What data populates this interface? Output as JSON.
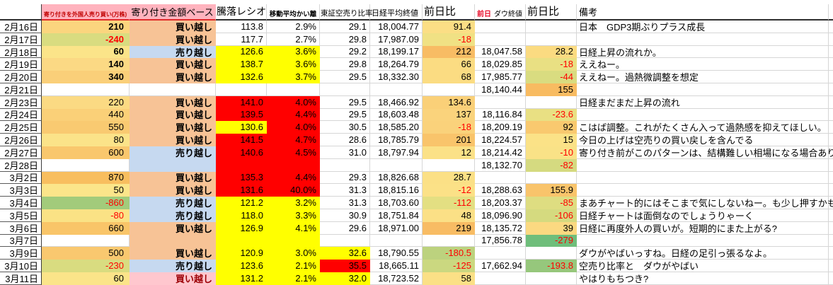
{
  "table": {
    "headers": {
      "date": "",
      "foreign": "寄り付きを外国人売り買い(万株)",
      "base": "寄り付き金額ベース",
      "ratio": "騰落レシオ",
      "dev": "移動平均かい離",
      "short": "東証空売り比率",
      "nikkei": "日経平均終値",
      "chg": "前日比",
      "dow_prev": "前日",
      "dow": "ダウ終値",
      "dowchg": "前日比",
      "note": "備考"
    },
    "palette": {
      "header_pink": "#FFB3BE",
      "header_red_text": "#C00000",
      "buy_bg": "#F7C396",
      "sell_bg": "#C6D9F0",
      "alert_buy_bg": "#FFC7CE",
      "alert_buy_text": "#9C0006",
      "ratio_red": "#FF0000",
      "ratio_yellow": "#FFFF00",
      "negative_text": "#FF0000"
    },
    "rows": [
      {
        "date": "2月16日",
        "foreign": {
          "t": "210",
          "bg": "#FBD57E",
          "b": 1
        },
        "base": {
          "t": "買い越し",
          "bg": "#F7C396"
        },
        "ratio": {
          "t": "113.8"
        },
        "dev": {
          "t": "2.9%"
        },
        "short": {
          "t": "29.1"
        },
        "nikkei": {
          "t": "18,004.77"
        },
        "chg": {
          "t": "91.4",
          "bg": "#FBDE85"
        },
        "note": {
          "t": "日本　GDP3期ぶりプラス成長"
        }
      },
      {
        "date": "2月17日",
        "foreign": {
          "t": "-240",
          "bg": "#D9DC80",
          "fg": "#FF0000",
          "b": 1
        },
        "base": {
          "t": "買い越し",
          "bg": "#F7C396"
        },
        "ratio": {
          "t": "117.7"
        },
        "dev": {
          "t": "2.7%"
        },
        "short": {
          "t": "29.8"
        },
        "nikkei": {
          "t": "17,987.09"
        },
        "chg": {
          "t": "-18",
          "bg": "#F0E184",
          "fg": "#FF0000"
        }
      },
      {
        "date": "2月18日",
        "foreign": {
          "t": "60",
          "bg": "#FBE489",
          "b": 1
        },
        "base": {
          "t": "売り越し",
          "bg": "#C6D9F0"
        },
        "ratio": {
          "t": "126.6",
          "bg": "#FFFF00"
        },
        "dev": {
          "t": "3.6%",
          "bg": "#FFFF00"
        },
        "short": {
          "t": "29.2"
        },
        "nikkei": {
          "t": "18,199.17"
        },
        "chg": {
          "t": "212",
          "bg": "#F8BC64"
        },
        "dow": {
          "t": "18,047.58"
        },
        "dowchg": {
          "t": "28.2",
          "bg": "#FBDB81"
        },
        "note": {
          "t": "日経上昇の流れか。"
        }
      },
      {
        "date": "2月19日",
        "foreign": {
          "t": "140",
          "bg": "#FBD984",
          "b": 1
        },
        "base": {
          "t": "買い越し",
          "bg": "#F7C396"
        },
        "ratio": {
          "t": "138.7",
          "bg": "#FFFF00"
        },
        "dev": {
          "t": "3.6%",
          "bg": "#FFFF00"
        },
        "short": {
          "t": "29.8"
        },
        "nikkei": {
          "t": "18,264.79"
        },
        "chg": {
          "t": "66",
          "bg": "#FBDC82"
        },
        "dow": {
          "t": "18,029.85"
        },
        "dowchg": {
          "t": "-18",
          "bg": "#E9E083",
          "fg": "#FF0000"
        },
        "note": {
          "t": "ええねー。"
        }
      },
      {
        "date": "2月20日",
        "foreign": {
          "t": "340",
          "bg": "#FACF79",
          "b": 1
        },
        "base": {
          "t": "買い越し",
          "bg": "#F7C396"
        },
        "ratio": {
          "t": "132.6",
          "bg": "#FFFF00"
        },
        "dev": {
          "t": "3.7%",
          "bg": "#FFFF00"
        },
        "short": {
          "t": "29.5"
        },
        "nikkei": {
          "t": "18,332.30"
        },
        "chg": {
          "t": "68",
          "bg": "#FBDC82"
        },
        "dow": {
          "t": "17,985.77"
        },
        "dowchg": {
          "t": "-44",
          "bg": "#D9DC80",
          "fg": "#FF0000"
        },
        "note": {
          "t": "ええねー。過熱微調整を想定"
        }
      },
      {
        "date": "2月21日",
        "dow": {
          "t": "18,140.44"
        },
        "dowchg": {
          "t": "155",
          "bg": "#F8BB61"
        }
      },
      {
        "date": "2月23日",
        "foreign": {
          "t": "220",
          "bg": "#FBDA83"
        },
        "base": {
          "t": "買い越し",
          "bg": "#F7C396"
        },
        "ratio": {
          "t": "141.0",
          "bg": "#FF0000"
        },
        "dev": {
          "t": "4.0%",
          "bg": "#FF0000"
        },
        "short": {
          "t": "29.5"
        },
        "nikkei": {
          "t": "18,466.92"
        },
        "chg": {
          "t": "134.6",
          "bg": "#FAD078"
        },
        "note": {
          "t": "日経まだまだ上昇の流れ"
        }
      },
      {
        "date": "2月24日",
        "foreign": {
          "t": "440",
          "bg": "#FAD078"
        },
        "base": {
          "t": "買い越し",
          "bg": "#F7C396"
        },
        "ratio": {
          "t": "139.5",
          "bg": "#FF0000"
        },
        "dev": {
          "t": "4.4%",
          "bg": "#FF0000"
        },
        "short": {
          "t": "29.5"
        },
        "nikkei": {
          "t": "18,603.48"
        },
        "chg": {
          "t": "137",
          "bg": "#FAD37C"
        },
        "dow": {
          "t": "18,116.84"
        },
        "dowchg": {
          "t": "-23.6",
          "bg": "#E9E083",
          "fg": "#FF0000"
        }
      },
      {
        "date": "2月25日",
        "foreign": {
          "t": "550",
          "bg": "#F9CA71"
        },
        "base": {
          "t": "買い越し",
          "bg": "#F7C396"
        },
        "ratio": {
          "t": "130.6",
          "bg": "#FFFF00"
        },
        "dev": {
          "t": "4.0%",
          "bg": "#FF0000"
        },
        "short": {
          "t": "30.5"
        },
        "nikkei": {
          "t": "18,585.20"
        },
        "chg": {
          "t": "-18",
          "bg": "#FAD27B",
          "fg": "#FF0000"
        },
        "dow": {
          "t": "18,209.19"
        },
        "dowchg": {
          "t": "92",
          "bg": "#F9C96F"
        },
        "note": {
          "t": "こはば調整。これがたくさん入って過熱感を抑えてほしい。"
        }
      },
      {
        "date": "2月26日",
        "foreign": {
          "t": "80",
          "bg": "#FBE389"
        },
        "base": {
          "t": "買い越し",
          "bg": "#F7C396"
        },
        "ratio": {
          "t": "141.5",
          "bg": "#FF0000"
        },
        "dev": {
          "t": "4.7%",
          "bg": "#FF0000"
        },
        "short": {
          "t": "28.6"
        },
        "nikkei": {
          "t": "18,785.79"
        },
        "chg": {
          "t": "201",
          "bg": "#F9C46B"
        },
        "dow": {
          "t": "18,224.57"
        },
        "dowchg": {
          "t": "15",
          "bg": "#FBE287"
        },
        "note": {
          "t": "今日の上げは空売りの買い戻しを含んでる"
        }
      },
      {
        "date": "2月27日",
        "foreign": {
          "t": "600",
          "bg": "#F9C76D"
        },
        "base": {
          "t": "売り越し",
          "bg": "#C6D9F0"
        },
        "ratio": {
          "t": "140.6",
          "bg": "#FF0000"
        },
        "dev": {
          "t": "4.5%",
          "bg": "#FF0000"
        },
        "short": {
          "t": "31.0"
        },
        "nikkei": {
          "t": "18,797.94"
        },
        "chg": {
          "t": "12",
          "bg": "#FBE187"
        },
        "dow": {
          "t": "18,214.42"
        },
        "dowchg": {
          "t": "-10",
          "bg": "#F9E287",
          "fg": "#FF0000"
        },
        "note": {
          "t": "寄り付き前がこのパターンは、結構難しい相場になる場合あり"
        }
      },
      {
        "date": "2月28日",
        "base": {
          "t": "",
          "bg": "#C6D9F0"
        },
        "ratio": {
          "t": "",
          "bg": "#FF0000"
        },
        "dev": {
          "t": "",
          "bg": "#FF0000"
        },
        "dow": {
          "t": "18,132.70"
        },
        "dowchg": {
          "t": "-82",
          "bg": "#D5DA80",
          "fg": "#FF0000"
        }
      },
      {
        "date": "3月2日",
        "foreign": {
          "t": "870",
          "bg": "#F8BE5F"
        },
        "base": {
          "t": "買い越し",
          "bg": "#F7C396"
        },
        "ratio": {
          "t": "135.3",
          "bg": "#FF0000"
        },
        "dev": {
          "t": "4.4%",
          "bg": "#FF0000"
        },
        "short": {
          "t": "29.3"
        },
        "nikkei": {
          "t": "18,826.68"
        },
        "chg": {
          "t": "28.7",
          "bg": "#FBE086"
        }
      },
      {
        "date": "3月3日",
        "foreign": {
          "t": "50",
          "bg": "#FBE58A"
        },
        "base": {
          "t": "買い越し",
          "bg": "#F7C396"
        },
        "ratio": {
          "t": "131.6",
          "bg": "#FF0000"
        },
        "dev": {
          "t": "40.0%",
          "bg": "#FF0000"
        },
        "short": {
          "t": "31.3"
        },
        "nikkei": {
          "t": "18,815.16"
        },
        "chg": {
          "t": "-12",
          "bg": "#FBE187",
          "fg": "#FF0000"
        },
        "dow": {
          "t": "18,288.63"
        },
        "dowchg": {
          "t": "155.9",
          "bg": "#F9C46B"
        }
      },
      {
        "date": "3月4日",
        "foreign": {
          "t": "-860",
          "bg": "#A2CB7B",
          "fg": "#FF0000"
        },
        "base": {
          "t": "売り越し",
          "bg": "#C6D9F0"
        },
        "ratio": {
          "t": "121.2",
          "bg": "#FFFF00"
        },
        "dev": {
          "t": "3.2%",
          "bg": "#FFFF00"
        },
        "short": {
          "t": "31.3"
        },
        "nikkei": {
          "t": "18,703.60"
        },
        "chg": {
          "t": "-112",
          "bg": "#E3DF82",
          "fg": "#FF0000"
        },
        "dow": {
          "t": "18,203.37"
        },
        "dowchg": {
          "t": "-85",
          "bg": "#DEDD81",
          "fg": "#FF0000"
        },
        "note": {
          "t": "まあチャート的にはそこまで気にしないねー。も少し押すかもね"
        }
      },
      {
        "date": "3月5日",
        "foreign": {
          "t": "-80",
          "bg": "#FAE285",
          "fg": "#FF0000"
        },
        "base": {
          "t": "売り越し",
          "bg": "#C6D9F0"
        },
        "ratio": {
          "t": "118.0",
          "bg": "#FFFF00"
        },
        "dev": {
          "t": "3.3%",
          "bg": "#FFFF00"
        },
        "short": {
          "t": "30.9"
        },
        "nikkei": {
          "t": "18,751.84"
        },
        "chg": {
          "t": "48",
          "bg": "#FBE086"
        },
        "dow": {
          "t": "18,096.90"
        },
        "dowchg": {
          "t": "-106",
          "bg": "#D5DA7F",
          "fg": "#FF0000"
        },
        "note": {
          "t": "日経チャートは面倒なのでしょうりゃーく"
        }
      },
      {
        "date": "3月6日",
        "foreign": {
          "t": "660",
          "bg": "#F9C569"
        },
        "base": {
          "t": "買い越し",
          "bg": "#F7C396"
        },
        "ratio": {
          "t": "126.9",
          "bg": "#FFFF00"
        },
        "dev": {
          "t": "4.1%",
          "bg": "#FFFF00"
        },
        "short": {
          "t": "29.6"
        },
        "nikkei": {
          "t": "18,971.00"
        },
        "chg": {
          "t": "219",
          "bg": "#F8BC64"
        },
        "dow": {
          "t": "18,135.72"
        },
        "dowchg": {
          "t": "39",
          "bg": "#FBD981"
        },
        "note": {
          "t": "日経に再度外人の買いが。短期的にまた上がる?"
        }
      },
      {
        "date": "3月7日",
        "base": {
          "t": "",
          "bg": "#F7C396"
        },
        "ratio": {
          "t": "",
          "bg": "#FFFF00"
        },
        "dev": {
          "t": "",
          "bg": "#FFFF00"
        },
        "dow": {
          "t": "17,856.78"
        },
        "dowchg": {
          "t": "-279",
          "bg": "#6FBE7B",
          "fg": "#FF0000"
        }
      },
      {
        "date": "3月9日",
        "foreign": {
          "t": "500",
          "bg": "#F9C86F"
        },
        "base": {
          "t": "買い越し",
          "bg": "#F7C396"
        },
        "ratio": {
          "t": "120.9",
          "bg": "#FFFF00"
        },
        "dev": {
          "t": "3.0%",
          "bg": "#FFFF00"
        },
        "short": {
          "t": "32.6",
          "bg": "#FFFF00"
        },
        "nikkei": {
          "t": "18,790.55"
        },
        "chg": {
          "t": "-180.5",
          "bg": "#BCD27E",
          "fg": "#FF0000"
        },
        "note": {
          "t": "ダウがやばいっすね。日経の足引っ張るなよ。"
        }
      },
      {
        "date": "3月10日",
        "foreign": {
          "t": "-230",
          "bg": "#D9DC80",
          "fg": "#FF0000"
        },
        "base": {
          "t": "売り越し",
          "bg": "#C6D9F0"
        },
        "ratio": {
          "t": "123.6",
          "bg": "#FFFF00"
        },
        "dev": {
          "t": "2.1%",
          "bg": "#FFFF00"
        },
        "short": {
          "t": "35.5",
          "bg": "#FF0000"
        },
        "nikkei": {
          "t": "18,665.11"
        },
        "chg": {
          "t": "-125",
          "bg": "#CBD880",
          "fg": "#FF0000"
        },
        "dow": {
          "t": "17,662.94"
        },
        "dowchg": {
          "t": "-193.8",
          "bg": "#96C77C",
          "fg": "#FF0000"
        },
        "note": {
          "t": "空売り比率と　ダウがやばい"
        }
      },
      {
        "date": "3月11日",
        "foreign": {
          "t": "60",
          "bg": "#FBE489"
        },
        "base": {
          "t": "買い越し",
          "bg": "#FFC7CE",
          "fg": "#9C0006"
        },
        "ratio": {
          "t": "131.2",
          "bg": "#FFFF00"
        },
        "dev": {
          "t": "2.1%",
          "bg": "#FFFF00"
        },
        "short": {
          "t": "32.0",
          "bg": "#FFFF00"
        },
        "nikkei": {
          "t": "18,723.52"
        },
        "chg": {
          "t": "58",
          "bg": "#FBE086"
        },
        "note": {
          "t": "やはりもちつき?"
        }
      }
    ]
  }
}
